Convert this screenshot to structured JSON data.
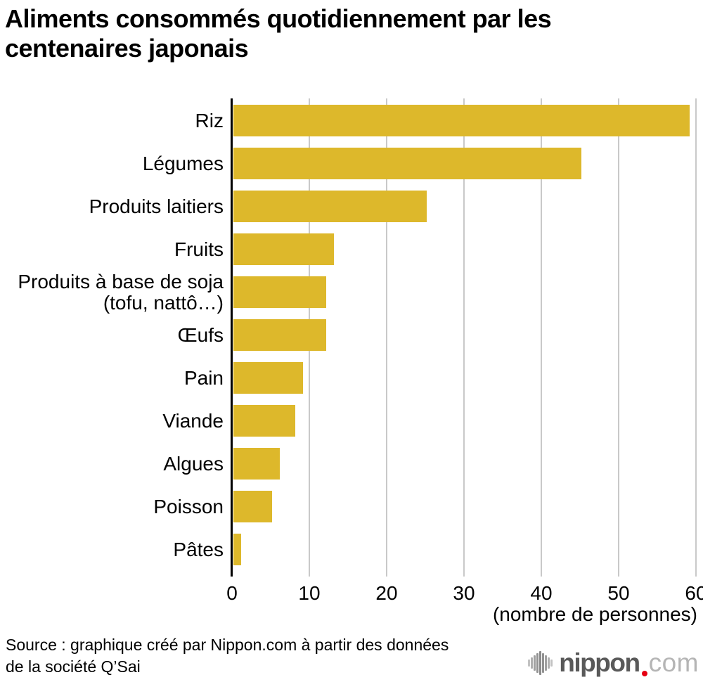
{
  "title": {
    "line1": "Aliments consommés quotidiennement par les",
    "line2": "centenaires japonais"
  },
  "chart_data": {
    "type": "bar",
    "orientation": "horizontal",
    "categories": [
      "Riz",
      "Légumes",
      "Produits laitiers",
      "Fruits",
      "Produits à base de soja (tofu, nattô…)",
      "Œufs",
      "Pain",
      "Viande",
      "Algues",
      "Poisson",
      "Pâtes"
    ],
    "values": [
      59,
      45,
      25,
      13,
      12,
      12,
      9,
      8,
      6,
      5,
      1
    ],
    "xlabel": "(nombre de personnes)",
    "xlim": [
      0,
      60
    ],
    "xticks": [
      "0",
      "10",
      "20",
      "30",
      "40",
      "50",
      "60"
    ],
    "bar_color": "#ddb82b",
    "grid": true,
    "gridline_color": "#c9c9c9",
    "axis_color": "#000000"
  },
  "labels": {
    "soja_line1": "Produits à base de soja",
    "soja_line2": "(tofu, nattô…)"
  },
  "source": {
    "line1": "Source : graphique créé par Nippon.com à partir des données",
    "line2": "de la société Q’Sai"
  },
  "logo": {
    "icon": "nippon-soundwave-icon",
    "brand": "nippon",
    "dot_color": "#e60012",
    "suffix": "com"
  }
}
